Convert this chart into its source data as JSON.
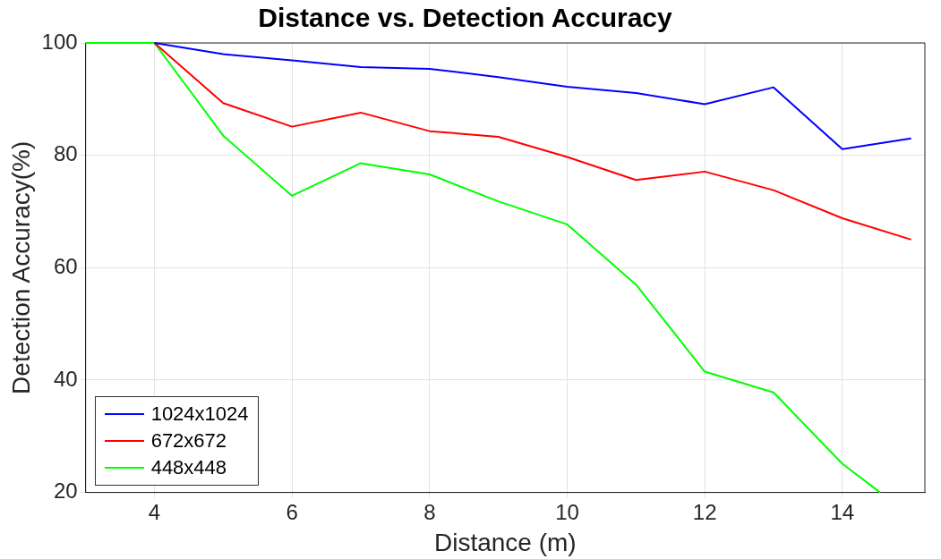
{
  "chart_data": {
    "type": "line",
    "title": "Distance vs. Detection Accuracy",
    "xlabel": "Distance (m)",
    "ylabel": "Detection Accuracy(%)",
    "x": [
      4,
      5,
      6,
      7,
      8,
      9,
      10,
      11,
      12,
      13,
      14,
      15
    ],
    "series": [
      {
        "name": "1024x1024",
        "color": "#0000ff",
        "values": [
          100,
          98.0,
          96.9,
          95.7,
          95.4,
          93.9,
          92.2,
          91.1,
          89.1,
          92.1,
          81.1,
          83.0
        ]
      },
      {
        "name": "672x672",
        "color": "#ff0000",
        "values": [
          100,
          89.3,
          85.1,
          87.6,
          84.3,
          83.3,
          79.7,
          75.6,
          77.1,
          73.8,
          68.8,
          65.0
        ]
      },
      {
        "name": "448x448",
        "color": "#00ff00",
        "x": [
          3,
          4,
          5,
          6,
          7,
          8,
          9,
          10,
          11,
          12,
          13,
          14,
          14.55
        ],
        "values": [
          100,
          100,
          83.5,
          72.8,
          78.6,
          76.6,
          71.8,
          67.7,
          57.0,
          41.5,
          37.8,
          25.1,
          20
        ]
      }
    ],
    "xlim": [
      3,
      15.2
    ],
    "xticks": [
      4,
      6,
      8,
      10,
      12,
      14
    ],
    "ylim": [
      20,
      100
    ],
    "yticks": [
      20,
      40,
      60,
      80,
      100
    ],
    "grid": true,
    "legend": "bottom left",
    "marker": "none",
    "line_style": "solid"
  }
}
